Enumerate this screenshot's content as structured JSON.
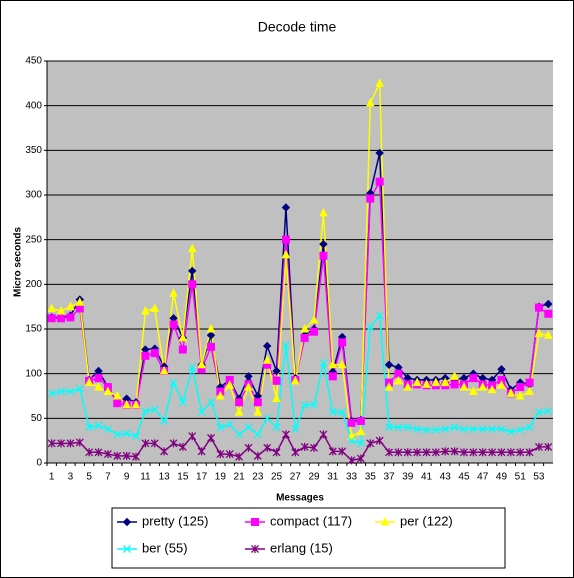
{
  "chart_data": {
    "type": "line",
    "title": "Decode time",
    "x_label": "Messages",
    "y_label": "Micro seconds",
    "categories": [
      "1",
      null,
      "3",
      null,
      "5",
      null,
      "7",
      null,
      "9",
      null,
      "11",
      null,
      "13",
      null,
      "15",
      null,
      "17",
      null,
      "19",
      null,
      "21",
      null,
      "23",
      null,
      "25",
      null,
      "27",
      null,
      "29",
      null,
      "31",
      null,
      "33",
      null,
      "35",
      null,
      "37",
      null,
      "39",
      null,
      "41",
      null,
      "43",
      null,
      "45",
      null,
      "47",
      null,
      "49",
      null,
      "51",
      null,
      "53",
      null
    ],
    "ylim": [
      0,
      450
    ],
    "yticks": [
      0,
      50,
      100,
      150,
      200,
      250,
      300,
      350,
      400,
      450
    ],
    "grid": true,
    "plot_background": "#c0c0c0",
    "legend_position": "bottom",
    "series": [
      {
        "name": "pretty (125)",
        "color": "#000080",
        "marker": "diamond",
        "values": [
          163,
          163,
          165,
          183,
          93,
          103,
          85,
          68,
          72,
          68,
          127,
          128,
          108,
          162,
          140,
          215,
          110,
          143,
          85,
          93,
          72,
          97,
          75,
          131,
          103,
          286,
          95,
          143,
          150,
          245,
          102,
          141,
          47,
          48,
          302,
          347,
          110,
          107,
          95,
          93,
          93,
          93,
          95,
          93,
          95,
          100,
          95,
          93,
          105,
          82,
          90,
          88,
          175,
          178
        ]
      },
      {
        "name": "compact (117)",
        "color": "#ff00ff",
        "marker": "square",
        "values": [
          162,
          162,
          163,
          173,
          92,
          95,
          85,
          67,
          65,
          65,
          120,
          123,
          103,
          155,
          127,
          200,
          105,
          130,
          80,
          93,
          68,
          88,
          68,
          110,
          92,
          250,
          93,
          140,
          147,
          232,
          97,
          135,
          45,
          47,
          296,
          315,
          90,
          100,
          88,
          88,
          87,
          87,
          87,
          88,
          88,
          95,
          88,
          87,
          93,
          78,
          85,
          90,
          174,
          167
        ]
      },
      {
        "name": "per (122)",
        "color": "#ffff00",
        "marker": "triangle",
        "values": [
          173,
          170,
          175,
          180,
          90,
          85,
          80,
          75,
          65,
          65,
          170,
          173,
          103,
          190,
          140,
          240,
          110,
          150,
          75,
          87,
          57,
          85,
          57,
          115,
          72,
          233,
          92,
          150,
          160,
          280,
          110,
          110,
          30,
          35,
          403,
          425,
          85,
          92,
          85,
          90,
          88,
          90,
          90,
          97,
          85,
          80,
          85,
          82,
          87,
          78,
          75,
          80,
          145,
          143
        ]
      },
      {
        "name": "ber (55)",
        "color": "#00ffff",
        "marker": "x",
        "values": [
          78,
          80,
          80,
          83,
          40,
          42,
          38,
          32,
          33,
          30,
          58,
          60,
          47,
          90,
          68,
          107,
          57,
          68,
          40,
          43,
          32,
          40,
          32,
          50,
          40,
          132,
          38,
          65,
          65,
          112,
          57,
          57,
          25,
          22,
          152,
          165,
          40,
          40,
          40,
          38,
          37,
          37,
          38,
          40,
          38,
          38,
          38,
          38,
          38,
          35,
          37,
          40,
          57,
          58
        ]
      },
      {
        "name": "erlang (15)",
        "color": "#800080",
        "marker": "star",
        "values": [
          22,
          22,
          22,
          23,
          12,
          12,
          10,
          8,
          8,
          7,
          22,
          22,
          13,
          22,
          18,
          30,
          13,
          28,
          10,
          10,
          7,
          17,
          8,
          17,
          12,
          32,
          12,
          18,
          17,
          32,
          13,
          13,
          3,
          5,
          22,
          25,
          12,
          12,
          12,
          12,
          12,
          12,
          13,
          13,
          12,
          12,
          12,
          12,
          12,
          12,
          12,
          12,
          18,
          18
        ]
      }
    ]
  }
}
